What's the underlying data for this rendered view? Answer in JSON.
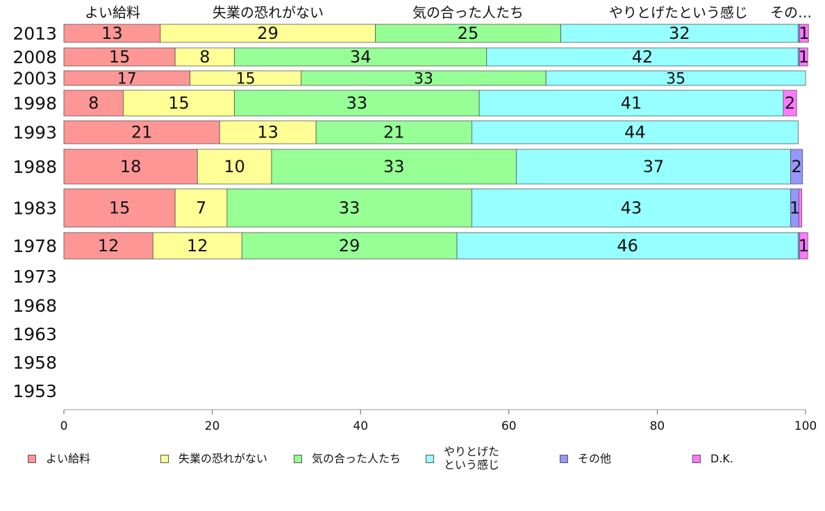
{
  "chart_data": {
    "type": "bar",
    "orientation": "horizontal",
    "stacked": true,
    "title": "",
    "xlabel": "",
    "ylabel": "",
    "xlim": [
      0,
      100
    ],
    "x_ticks": [
      "0",
      "20",
      "40",
      "60",
      "80",
      "100"
    ],
    "categories": [
      "2013",
      "2008",
      "2003",
      "1998",
      "1993",
      "1988",
      "1983",
      "1978",
      "1973",
      "1968",
      "1963",
      "1958",
      "1953"
    ],
    "top_labels": [
      "よい給料",
      "失業の恐れがない",
      "気の合った人たち",
      "やりとげたという感じ",
      "その…"
    ],
    "series": [
      {
        "name": "よい給料",
        "legend_label": "よい給料",
        "color": "#ff9696",
        "values": [
          13,
          15,
          17,
          8,
          21,
          18,
          15,
          12,
          null,
          null,
          null,
          null,
          null
        ]
      },
      {
        "name": "失業の恐れがない",
        "legend_label": "失業の恐れがない",
        "color": "#ffff96",
        "values": [
          29,
          8,
          15,
          15,
          13,
          10,
          7,
          12,
          null,
          null,
          null,
          null,
          null
        ]
      },
      {
        "name": "気の合った人たち",
        "legend_label": "気の合った人たち",
        "color": "#96ff96",
        "values": [
          25,
          34,
          33,
          33,
          21,
          33,
          33,
          29,
          null,
          null,
          null,
          null,
          null
        ]
      },
      {
        "name": "やりとげたという感じ",
        "legend_label": "やりとげた\nという感じ",
        "color": "#96ffff",
        "values": [
          32,
          42,
          35,
          41,
          44,
          37,
          43,
          46,
          null,
          null,
          null,
          null,
          null
        ]
      },
      {
        "name": "その他",
        "legend_label": "その他",
        "color": "#9696ff",
        "values": [
          0.2,
          0.2,
          0.0,
          0.0,
          0.0,
          1.6,
          1.1,
          0.2,
          null,
          null,
          null,
          null,
          null
        ],
        "labels": [
          "",
          "",
          "",
          "",
          "",
          "2",
          "1",
          "",
          "",
          "",
          "",
          "",
          ""
        ]
      },
      {
        "name": "D.K.",
        "legend_label": "D.K.",
        "color": "#ff78ff",
        "values": [
          1.2,
          1.1,
          0.0,
          1.8,
          0.0,
          0.0,
          0.4,
          1.1,
          null,
          null,
          null,
          null,
          null
        ],
        "labels": [
          "1",
          "1",
          "",
          "2",
          "",
          "",
          "",
          "1",
          "",
          "",
          "",
          "",
          ""
        ]
      }
    ],
    "legend_position": "bottom",
    "grid": false
  }
}
